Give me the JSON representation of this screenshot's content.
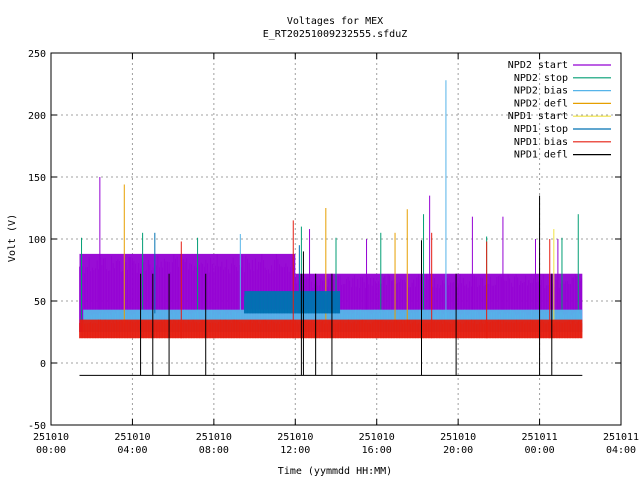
{
  "chart_data": {
    "type": "line",
    "title": "Voltages for MEX",
    "subtitle": "E_RT20251009232555.sfduZ",
    "xlabel": "Time (yymmdd HH:MM)",
    "ylabel": "Volt (V)",
    "xlim_hours": [
      0,
      28
    ],
    "ylim": [
      -50,
      250
    ],
    "grid": true,
    "legend_position": "top-right",
    "x_ticks": [
      {
        "hours": 0,
        "line1": "251010",
        "line2": "00:00"
      },
      {
        "hours": 4,
        "line1": "251010",
        "line2": "04:00"
      },
      {
        "hours": 8,
        "line1": "251010",
        "line2": "08:00"
      },
      {
        "hours": 12,
        "line1": "251010",
        "line2": "12:00"
      },
      {
        "hours": 16,
        "line1": "251010",
        "line2": "16:00"
      },
      {
        "hours": 20,
        "line1": "251010",
        "line2": "20:00"
      },
      {
        "hours": 24,
        "line1": "251011",
        "line2": "00:00"
      },
      {
        "hours": 28,
        "line1": "251011",
        "line2": "04:00"
      }
    ],
    "y_ticks": [
      -50,
      0,
      50,
      100,
      150,
      200,
      250
    ],
    "series": [
      {
        "name": "NPD2 start",
        "color": "#9400d3",
        "bands": [
          {
            "x0": 1.4,
            "x1": 12.0,
            "ylow": 25,
            "yhigh": 88
          },
          {
            "x0": 12.0,
            "x1": 26.1,
            "ylow": 25,
            "yhigh": 72
          }
        ],
        "spikes": [
          {
            "x": 2.4,
            "y": 150
          },
          {
            "x": 12.7,
            "y": 108
          },
          {
            "x": 15.5,
            "y": 100
          },
          {
            "x": 18.6,
            "y": 135
          },
          {
            "x": 20.7,
            "y": 118
          },
          {
            "x": 22.2,
            "y": 118
          },
          {
            "x": 23.8,
            "y": 100
          },
          {
            "x": 24.9,
            "y": 100
          }
        ]
      },
      {
        "name": "NPD2 stop",
        "color": "#009e73",
        "bands": [],
        "spikes": [
          {
            "x": 1.5,
            "y": 101
          },
          {
            "x": 4.5,
            "y": 105
          },
          {
            "x": 7.2,
            "y": 101
          },
          {
            "x": 12.3,
            "y": 110
          },
          {
            "x": 14.0,
            "y": 101
          },
          {
            "x": 16.2,
            "y": 105
          },
          {
            "x": 18.3,
            "y": 120
          },
          {
            "x": 21.4,
            "y": 102
          },
          {
            "x": 25.1,
            "y": 101
          },
          {
            "x": 25.9,
            "y": 120
          }
        ]
      },
      {
        "name": "NPD2 bias",
        "color": "#56b4e9",
        "bands": [
          {
            "x0": 1.6,
            "x1": 26.1,
            "ylow": 25,
            "yhigh": 43
          }
        ],
        "spikes": [
          {
            "x": 19.4,
            "y": 228
          },
          {
            "x": 9.3,
            "y": 104
          }
        ]
      },
      {
        "name": "NPD2 defl",
        "color": "#e69f00",
        "bands": [],
        "spikes": [
          {
            "x": 3.6,
            "y": 144
          },
          {
            "x": 13.5,
            "y": 125
          },
          {
            "x": 17.5,
            "y": 124
          },
          {
            "x": 16.9,
            "y": 105
          }
        ]
      },
      {
        "name": "NPD1 start",
        "color": "#f0e442",
        "bands": [],
        "spikes": [
          {
            "x": 24.7,
            "y": 108
          }
        ]
      },
      {
        "name": "NPD1 stop",
        "color": "#0072b2",
        "bands": [
          {
            "x0": 9.5,
            "x1": 14.2,
            "ylow": 40,
            "yhigh": 58
          }
        ],
        "spikes": [
          {
            "x": 5.1,
            "y": 105
          },
          {
            "x": 12.2,
            "y": 95
          }
        ]
      },
      {
        "name": "NPD1 bias",
        "color": "#e51e10",
        "bands": [
          {
            "x0": 1.4,
            "x1": 26.1,
            "ylow": 20,
            "yhigh": 35
          }
        ],
        "spikes": [
          {
            "x": 6.4,
            "y": 98
          },
          {
            "x": 11.9,
            "y": 115
          },
          {
            "x": 18.7,
            "y": 105
          },
          {
            "x": 21.4,
            "y": 98
          },
          {
            "x": 24.5,
            "y": 100
          }
        ]
      },
      {
        "name": "NPD1 defl",
        "color": "#000000",
        "bands": [],
        "baseline": -10,
        "spikes": [
          {
            "x": 4.4,
            "y": 72
          },
          {
            "x": 5.0,
            "y": 72
          },
          {
            "x": 5.8,
            "y": 72
          },
          {
            "x": 7.6,
            "y": 72
          },
          {
            "x": 12.3,
            "y": 72
          },
          {
            "x": 12.4,
            "y": 90
          },
          {
            "x": 13.0,
            "y": 72
          },
          {
            "x": 13.8,
            "y": 72
          },
          {
            "x": 18.2,
            "y": 99
          },
          {
            "x": 19.9,
            "y": 72
          },
          {
            "x": 24.0,
            "y": 135
          },
          {
            "x": 24.6,
            "y": 72
          }
        ]
      }
    ]
  }
}
